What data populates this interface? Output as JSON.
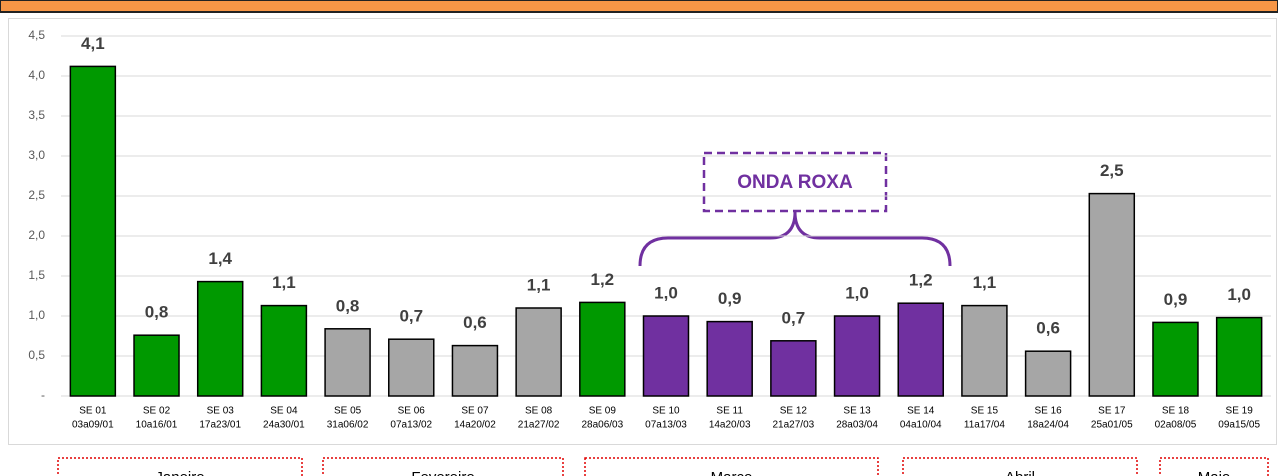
{
  "chart_data": {
    "type": "bar",
    "categories": [
      "SE 01",
      "SE 02",
      "SE 03",
      "SE 04",
      "SE 05",
      "SE 06",
      "SE 07",
      "SE 08",
      "SE 09",
      "SE 10",
      "SE 11",
      "SE 12",
      "SE 13",
      "SE 14",
      "SE 15",
      "SE 16",
      "SE 17",
      "SE 18",
      "SE 19"
    ],
    "periods": [
      "03a09/01",
      "10a16/01",
      "17a23/01",
      "24a30/01",
      "31a06/02",
      "07a13/02",
      "14a20/02",
      "21a27/02",
      "28a06/03",
      "07a13/03",
      "14a20/03",
      "21a27/03",
      "28a03/04",
      "04a10/04",
      "11a17/04",
      "18a24/04",
      "25a01/05",
      "02a08/05",
      "09a15/05"
    ],
    "values": [
      4.12,
      0.76,
      1.43,
      1.13,
      0.84,
      0.71,
      0.63,
      1.1,
      1.17,
      1.0,
      0.93,
      0.69,
      1.0,
      1.16,
      1.13,
      0.56,
      2.53,
      0.92,
      0.98
    ],
    "value_labels": [
      "4,1",
      "0,8",
      "1,4",
      "1,1",
      "0,8",
      "0,7",
      "0,6",
      "1,1",
      "1,2",
      "1,0",
      "0,9",
      "0,7",
      "1,0",
      "1,2",
      "1,1",
      "0,6",
      "2,5",
      "0,9",
      "1,0"
    ],
    "colors": [
      "#009900",
      "#009900",
      "#009900",
      "#009900",
      "#a6a6a6",
      "#a6a6a6",
      "#a6a6a6",
      "#a6a6a6",
      "#009900",
      "#7030a0",
      "#7030a0",
      "#7030a0",
      "#7030a0",
      "#7030a0",
      "#a6a6a6",
      "#a6a6a6",
      "#a6a6a6",
      "#009900",
      "#009900"
    ],
    "ylim": [
      0,
      4.5
    ],
    "yticks": [
      {
        "value": 0,
        "label": "-"
      },
      {
        "value": 0.5,
        "label": "0,5"
      },
      {
        "value": 1,
        "label": "1,0"
      },
      {
        "value": 1.5,
        "label": "1,5"
      },
      {
        "value": 2,
        "label": "2,0"
      },
      {
        "value": 2.5,
        "label": "2,5"
      },
      {
        "value": 3,
        "label": "3,0"
      },
      {
        "value": 3.5,
        "label": "3,5"
      },
      {
        "value": 4,
        "label": "4,0"
      },
      {
        "value": 4.5,
        "label": "4,5"
      }
    ],
    "grid": true,
    "annotation": "ONDA ROXA",
    "months": [
      "Janeiro",
      "Fevereiro",
      "Março",
      "Abril",
      "Maio"
    ]
  }
}
